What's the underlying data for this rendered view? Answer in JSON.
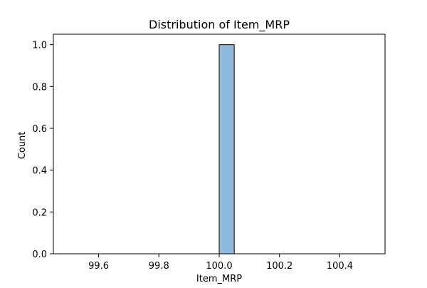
{
  "chart_data": {
    "type": "bar",
    "title": "Distribution of Item_MRP",
    "xlabel": "Item_MRP",
    "ylabel": "Count",
    "xlim": [
      99.45,
      100.55
    ],
    "ylim": [
      0,
      1.05
    ],
    "bins": [
      {
        "x0": 100.0,
        "x1": 100.05,
        "count": 1.0
      }
    ],
    "baseline": [
      99.5,
      100.5
    ],
    "xticks": [
      {
        "value": 99.6,
        "label": "99.6"
      },
      {
        "value": 99.8,
        "label": "99.8"
      },
      {
        "value": 100.0,
        "label": "100.0"
      },
      {
        "value": 100.2,
        "label": "100.2"
      },
      {
        "value": 100.4,
        "label": "100.4"
      }
    ],
    "yticks": [
      {
        "value": 0.0,
        "label": "0.0"
      },
      {
        "value": 0.2,
        "label": "0.2"
      },
      {
        "value": 0.4,
        "label": "0.4"
      },
      {
        "value": 0.6,
        "label": "0.6"
      },
      {
        "value": 0.8,
        "label": "0.8"
      },
      {
        "value": 1.0,
        "label": "1.0"
      }
    ],
    "grid": false,
    "colors": {
      "bar_fill": "#8db9db",
      "bar_edge": "#000000",
      "axes": "#000000",
      "background": "#ffffff"
    }
  }
}
